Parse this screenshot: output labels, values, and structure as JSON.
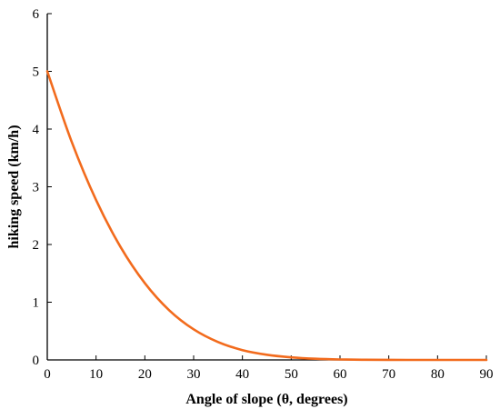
{
  "chart_data": {
    "type": "line",
    "title": "",
    "xlabel": "Angle of slope (θ, degrees)",
    "ylabel": "hiking speed (km/h)",
    "xlim": [
      0,
      90
    ],
    "ylim": [
      0,
      6
    ],
    "xticks": [
      0,
      10,
      20,
      30,
      40,
      50,
      60,
      70,
      80,
      90
    ],
    "yticks": [
      0,
      1,
      2,
      3,
      4,
      5,
      6
    ],
    "grid": false,
    "series": [
      {
        "name": "",
        "color": "#f26b1d",
        "x": [
          0,
          5,
          10,
          15,
          20,
          25,
          30,
          35,
          40,
          45,
          50,
          55,
          60,
          65,
          70,
          75,
          80,
          85,
          90
        ],
        "y": [
          5.0,
          3.78,
          2.77,
          1.96,
          1.33,
          0.86,
          0.53,
          0.31,
          0.17,
          0.09,
          0.045,
          0.02,
          0.008,
          0.003,
          0.001,
          0.0,
          0.0,
          0.0,
          0.0
        ]
      }
    ]
  }
}
